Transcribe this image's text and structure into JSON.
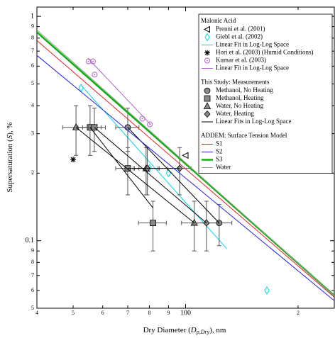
{
  "chart_data": {
    "type": "scatter",
    "log_x": true,
    "log_y": true,
    "xlabel": {
      "pre": "Dry Diameter (",
      "var": "D",
      "sub": "p,Dry",
      "post": "), nm"
    },
    "ylabel": {
      "pre": "Supersaturation (",
      "var": "S",
      "post": "), %"
    },
    "xlim": [
      40,
      250
    ],
    "ylim": [
      0.05,
      1.1
    ],
    "xticks": [
      {
        "value": 40,
        "label": "4"
      },
      {
        "value": 50,
        "label": "5"
      },
      {
        "value": 60,
        "label": "6"
      },
      {
        "value": 70,
        "label": "7"
      },
      {
        "value": 80,
        "label": "8"
      },
      {
        "value": 90,
        "label": "9"
      },
      100,
      {
        "value": 200,
        "label": "2"
      }
    ],
    "yticks": [
      {
        "value": 0.05,
        "label": "5"
      },
      {
        "value": 0.06,
        "label": "6"
      },
      {
        "value": 0.07,
        "label": "7"
      },
      {
        "value": 0.08,
        "label": "8"
      },
      {
        "value": 0.09,
        "label": "9"
      },
      0.1,
      {
        "value": 0.2,
        "label": "2"
      },
      {
        "value": 0.3,
        "label": "3"
      },
      {
        "value": 0.4,
        "label": "4"
      },
      {
        "value": 0.5,
        "label": "5"
      },
      {
        "value": 0.6,
        "label": "6"
      },
      {
        "value": 0.7,
        "label": "7"
      },
      {
        "value": 0.8,
        "label": "8"
      },
      {
        "value": 0.9,
        "label": "9"
      },
      1
    ],
    "groups": [
      {
        "title": "Malonic Acid",
        "series": [
          {
            "name": "Prenni et al. (2001)",
            "color": "#000000",
            "marker": "triangle-left",
            "x": [
              100
            ],
            "y": [
              0.24
            ]
          },
          {
            "name": "Giebl et al. (2002)",
            "color": "#00d8e8",
            "marker": "diamond-open",
            "x": [
              52.5,
              80,
              90,
              165
            ],
            "y": [
              0.48,
              0.21,
              0.2,
              0.06
            ]
          },
          {
            "name": "Linear Fit in Log-Log Space",
            "color": "#00d8e8",
            "marker": "line",
            "segments": [
              {
                "x": [
                  52.7,
                  129
                ],
                "y": [
                  0.49,
                  0.092
                ]
              }
            ]
          },
          {
            "name": "Hori et al. (2003) (Humid Conditions)",
            "color": "#000000",
            "marker": "asterisk",
            "x": [
              50
            ],
            "y": [
              0.23
            ]
          },
          {
            "name": "Kumar et al. (2003)",
            "color": "#b060d0",
            "marker": "circle-dot",
            "x": [
              55,
              56.5,
              57.1,
              76.6,
              80.2
            ],
            "y": [
              0.63,
              0.63,
              0.55,
              0.35,
              0.33
            ]
          },
          {
            "name": "Linear Fit in Log-Log Space",
            "color": "#b060d0",
            "marker": "line",
            "segments": [
              {
                "x": [
                  54.8,
                  80.6
                ],
                "y": [
                  0.65,
                  0.33
                ]
              }
            ]
          }
        ]
      },
      {
        "title": "This Study: Measurements",
        "series": [
          {
            "name": "Methanol, No Heating",
            "color": "#888888",
            "marker": "circle",
            "x": [
              70,
              123
            ],
            "y": [
              0.32,
              0.12
            ],
            "xerr": [
              5,
              10
            ],
            "yerr": [
              0.07,
              0.025
            ]
          },
          {
            "name": "Methanol, Heating",
            "color": "#888888",
            "marker": "square",
            "x": [
              55.5,
              57,
              70,
              81.8
            ],
            "y": [
              0.32,
              0.32,
              0.21,
              0.12
            ],
            "xerr": [
              4,
              4,
              5,
              7
            ],
            "yerr": [
              0.08,
              0.07,
              0.05,
              0.03
            ]
          },
          {
            "name": "Water, No Heating",
            "color": "#888888",
            "marker": "triangle",
            "x": [
              50.9,
              78.4,
              105.5
            ],
            "y": [
              0.32,
              0.21,
              0.12
            ],
            "xerr": [
              4,
              6,
              8
            ],
            "yerr": [
              0.08,
              0.05,
              0.03
            ]
          },
          {
            "name": "Water, Heating",
            "color": "#888888",
            "marker": "diamond",
            "x": [
              79,
              96.4,
              113.7
            ],
            "y": [
              0.21,
              0.21,
              0.12
            ],
            "xerr": [
              6,
              7,
              9
            ],
            "yerr": [
              0.05,
              0.05,
              0.03
            ]
          },
          {
            "name": "Linear Fits in Log-Log Space",
            "color": "#000000",
            "marker": "line",
            "segments": [
              {
                "x": [
                  50.9,
                  105.5
                ],
                "y": [
                  0.32,
                  0.12
                ]
              },
              {
                "x": [
                  55.5,
                  81.8
                ],
                "y": [
                  0.32,
                  0.14
                ]
              },
              {
                "x": [
                  70,
                  123
                ],
                "y": [
                  0.32,
                  0.12
                ]
              },
              {
                "x": [
                  57,
                  113.7
                ],
                "y": [
                  0.32,
                  0.12
                ]
              },
              {
                "x": [
                  70,
                  96.4
                ],
                "y": [
                  0.21,
                  0.21
                ]
              }
            ]
          }
        ]
      },
      {
        "title": "ADDEM: Surface Tension Model",
        "series": [
          {
            "name": "S1",
            "color": "#e02020",
            "marker": "line",
            "segments": [
              {
                "x": [
                  40,
                  250
                ],
                "y": [
                  0.78,
                  0.056
                ]
              }
            ]
          },
          {
            "name": "S2",
            "color": "#2020e0",
            "marker": "line",
            "segments": [
              {
                "x": [
                  40,
                  250
                ],
                "y": [
                  0.67,
                  0.054
                ]
              }
            ]
          },
          {
            "name": "S3",
            "color": "#10b010",
            "marker": "line-thick",
            "segments": [
              {
                "x": [
                  40,
                  250
                ],
                "y": [
                  0.85,
                  0.057
                ]
              }
            ]
          },
          {
            "name": "Water",
            "color": "#999999",
            "marker": "line",
            "segments": [
              {
                "x": [
                  40,
                  250
                ],
                "y": [
                  0.87,
                  0.057
                ]
              }
            ]
          }
        ]
      }
    ]
  }
}
